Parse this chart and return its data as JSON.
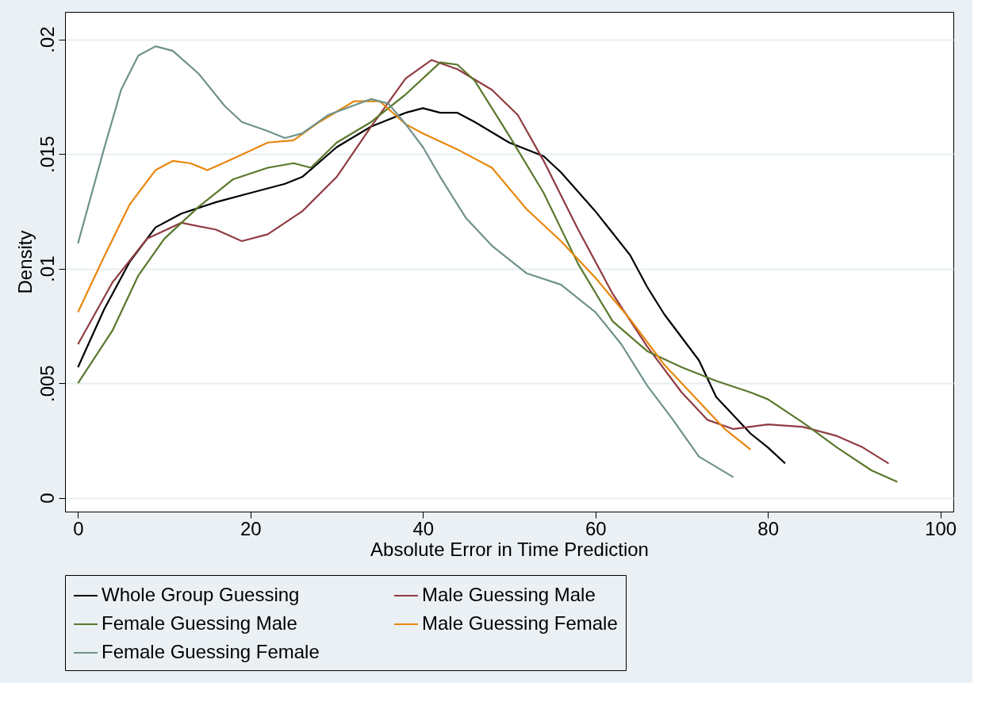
{
  "chart_data": {
    "type": "line",
    "xlabel": "Absolute Error in Time Prediction",
    "ylabel": "Density",
    "xlim": [
      -1.5,
      101.5
    ],
    "xticks": [
      0,
      20,
      40,
      60,
      80,
      100
    ],
    "ylim": [
      -0.0006,
      0.0212
    ],
    "yticks": [
      {
        "value": 0,
        "label": "0"
      },
      {
        "value": 0.005,
        "label": ".005"
      },
      {
        "value": 0.01,
        "label": ".01"
      },
      {
        "value": 0.015,
        "label": ".015"
      },
      {
        "value": 0.02,
        "label": ".02"
      }
    ],
    "grid": "y",
    "legend": "bottom",
    "line_style": "solid",
    "marker": "none",
    "series": [
      {
        "name": "Whole Group Guessing",
        "color": "#000000",
        "x": [
          0,
          3,
          6,
          9,
          12,
          16,
          20,
          24,
          26,
          30,
          34,
          38,
          40,
          42,
          44,
          46,
          50,
          54,
          56,
          60,
          64,
          66,
          68,
          72,
          74,
          78,
          80,
          82
        ],
        "values": [
          0.0057,
          0.0082,
          0.0103,
          0.0118,
          0.0124,
          0.0129,
          0.0133,
          0.0137,
          0.014,
          0.0153,
          0.0162,
          0.0168,
          0.017,
          0.0168,
          0.0168,
          0.0164,
          0.0155,
          0.0149,
          0.0142,
          0.0125,
          0.0106,
          0.0092,
          0.008,
          0.006,
          0.0044,
          0.0028,
          0.0022,
          0.0015
        ]
      },
      {
        "name": "Male Guessing Male",
        "color": "#903c42",
        "x": [
          0,
          4,
          8,
          12,
          16,
          19,
          22,
          26,
          30,
          34,
          38,
          41,
          44,
          48,
          51,
          54,
          58,
          62,
          66,
          70,
          73,
          76,
          80,
          84,
          88,
          91,
          94
        ],
        "values": [
          0.0067,
          0.0094,
          0.0113,
          0.012,
          0.0117,
          0.0112,
          0.0115,
          0.0125,
          0.014,
          0.0162,
          0.0183,
          0.0191,
          0.0187,
          0.0178,
          0.0167,
          0.0147,
          0.0117,
          0.0089,
          0.0066,
          0.0046,
          0.0034,
          0.003,
          0.0032,
          0.0031,
          0.0027,
          0.0022,
          0.0015
        ]
      },
      {
        "name": "Female Guessing Male",
        "color": "#5a782c",
        "x": [
          0,
          4,
          7,
          10,
          14,
          18,
          22,
          25,
          27,
          30,
          34,
          38,
          42,
          44,
          46,
          50,
          54,
          58,
          62,
          66,
          70,
          74,
          78,
          80,
          84,
          88,
          92,
          95
        ],
        "values": [
          0.005,
          0.0073,
          0.0097,
          0.0113,
          0.0127,
          0.0139,
          0.0144,
          0.0146,
          0.0144,
          0.0155,
          0.0164,
          0.0176,
          0.019,
          0.0189,
          0.0182,
          0.0158,
          0.0133,
          0.0102,
          0.0077,
          0.0064,
          0.0057,
          0.0051,
          0.0046,
          0.0043,
          0.0033,
          0.0022,
          0.0012,
          0.0007
        ]
      },
      {
        "name": "Male Guessing Female",
        "color": "#e8870e",
        "x": [
          0,
          3,
          6,
          9,
          11,
          13,
          15,
          18,
          22,
          25,
          28,
          32,
          35,
          38,
          40,
          44,
          48,
          52,
          56,
          60,
          64,
          68,
          72,
          75,
          78
        ],
        "values": [
          0.0081,
          0.0105,
          0.0128,
          0.0143,
          0.0147,
          0.0146,
          0.0143,
          0.0148,
          0.0155,
          0.0156,
          0.0164,
          0.0173,
          0.0173,
          0.0163,
          0.0159,
          0.0152,
          0.0144,
          0.0126,
          0.0112,
          0.0096,
          0.0078,
          0.0058,
          0.0042,
          0.003,
          0.0021
        ]
      },
      {
        "name": "Female Guessing Female",
        "color": "#6f928c",
        "x": [
          0,
          3,
          5,
          7,
          9,
          11,
          14,
          17,
          19,
          22,
          24,
          26,
          29,
          34,
          36,
          38,
          40,
          42,
          45,
          48,
          52,
          56,
          60,
          63,
          66,
          69,
          72,
          76
        ],
        "values": [
          0.0111,
          0.0152,
          0.0178,
          0.0193,
          0.0197,
          0.0195,
          0.0185,
          0.0171,
          0.0164,
          0.016,
          0.0157,
          0.0159,
          0.0167,
          0.0174,
          0.0172,
          0.0163,
          0.0153,
          0.014,
          0.0122,
          0.011,
          0.0098,
          0.0093,
          0.0081,
          0.0067,
          0.0049,
          0.0034,
          0.0018,
          0.0009
        ]
      }
    ]
  }
}
